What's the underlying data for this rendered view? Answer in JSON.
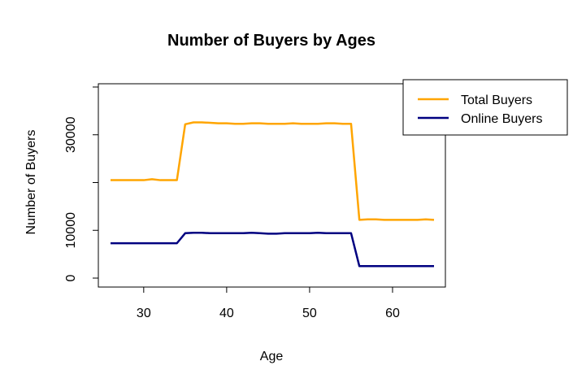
{
  "chart_data": {
    "type": "line",
    "title": "Number of Buyers by Ages",
    "xlabel": "Age",
    "ylabel": "Number of Buyers",
    "xlim": [
      26,
      65
    ],
    "ylim": [
      0,
      40000
    ],
    "x_ticks": [
      30,
      40,
      50,
      60
    ],
    "y_ticks": [
      0,
      10000,
      30000
    ],
    "grid": false,
    "legend_position": "top-right",
    "x": [
      26,
      27,
      28,
      29,
      30,
      31,
      32,
      33,
      34,
      35,
      36,
      37,
      38,
      39,
      40,
      41,
      42,
      43,
      44,
      45,
      46,
      47,
      48,
      49,
      50,
      51,
      52,
      53,
      54,
      55,
      56,
      57,
      58,
      59,
      60,
      61,
      62,
      63,
      64,
      65
    ],
    "series": [
      {
        "name": "Total Buyers",
        "color": "#FFA500",
        "values": [
          20500,
          20500,
          20500,
          20500,
          20500,
          20700,
          20500,
          20500,
          20500,
          32200,
          32600,
          32600,
          32500,
          32400,
          32400,
          32300,
          32300,
          32400,
          32400,
          32300,
          32300,
          32300,
          32400,
          32300,
          32300,
          32300,
          32400,
          32400,
          32300,
          32300,
          12200,
          12300,
          12300,
          12200,
          12200,
          12200,
          12200,
          12200,
          12300,
          12200
        ]
      },
      {
        "name": "Online Buyers",
        "color": "#000080",
        "values": [
          7300,
          7300,
          7300,
          7300,
          7300,
          7300,
          7300,
          7300,
          7300,
          9400,
          9500,
          9500,
          9400,
          9400,
          9400,
          9400,
          9400,
          9500,
          9400,
          9300,
          9300,
          9400,
          9400,
          9400,
          9400,
          9500,
          9400,
          9400,
          9400,
          9400,
          2500,
          2500,
          2500,
          2500,
          2500,
          2500,
          2500,
          2500,
          2500,
          2500
        ]
      }
    ]
  }
}
